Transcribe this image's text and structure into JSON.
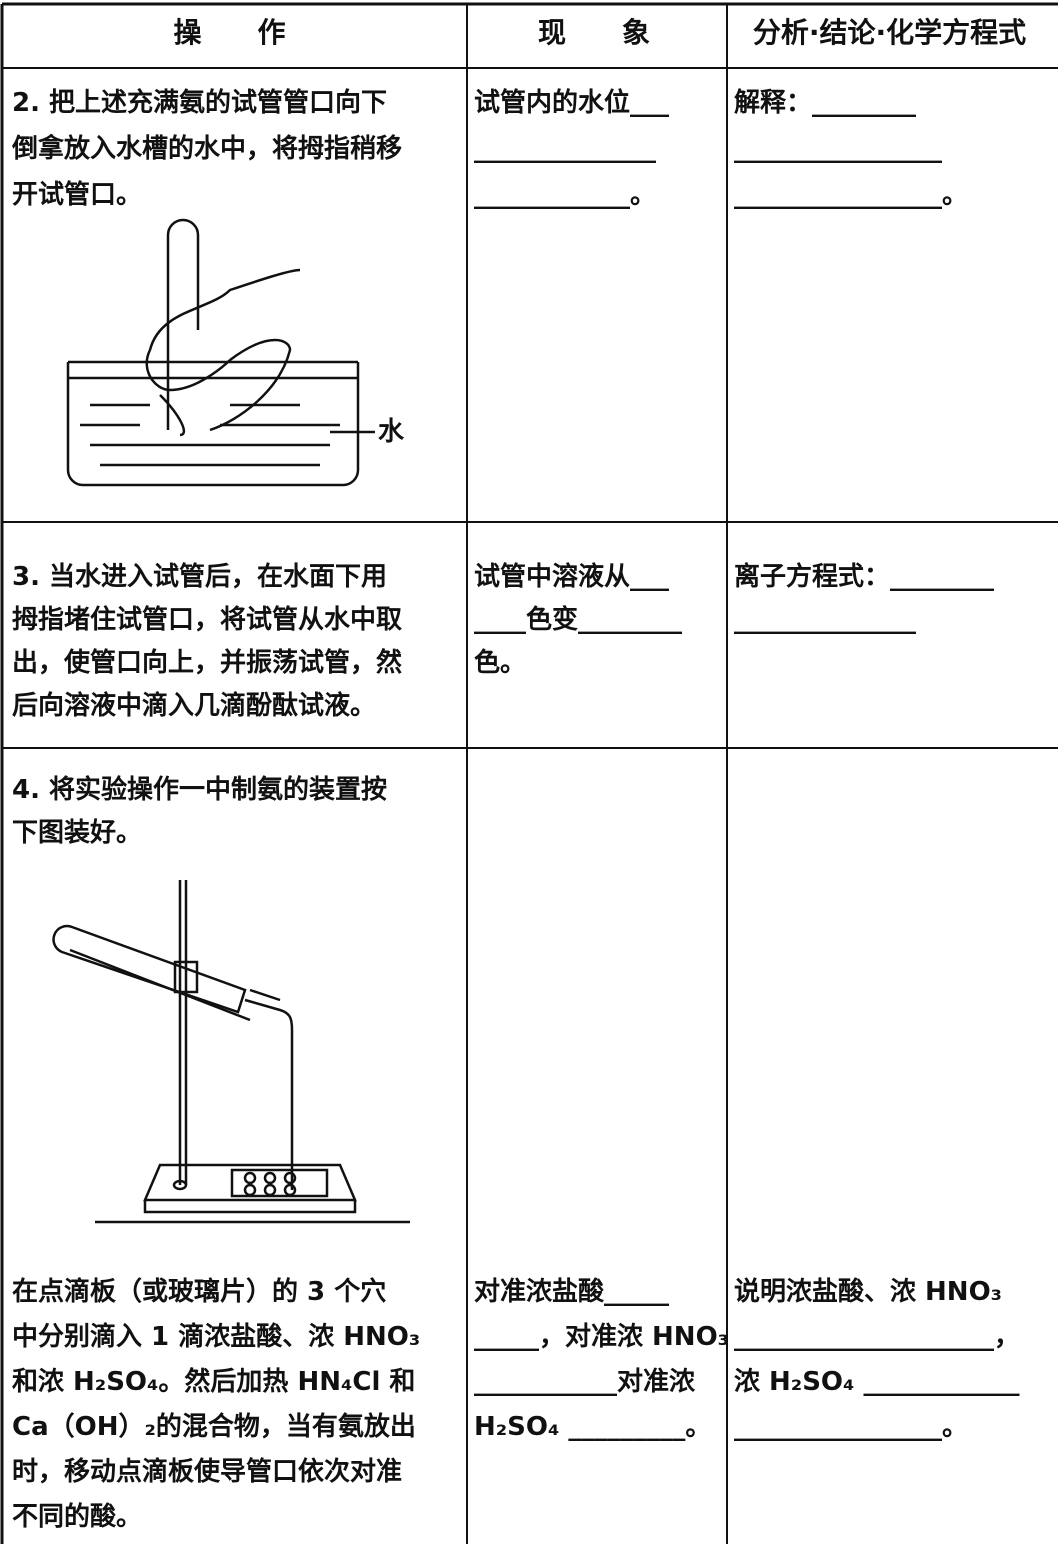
{
  "table": {
    "header": [
      "操　　作",
      "现　　象",
      "分析·结论·化学方程式"
    ],
    "rows": [
      {
        "cells": [
          {
            "lines": [
              "2. 把上述充满氨的试管管口向下",
              "倒拿放入水槽的水中，将拇指稍移",
              "开试管口。"
            ],
            "figure_label": "水"
          },
          {
            "lines": [
              "试管内的水位___",
              "______________",
              "____________。"
            ]
          },
          {
            "lines": [
              "解释：________",
              "________________",
              "________________。"
            ]
          }
        ]
      },
      {
        "cells": [
          {
            "lines": [
              "3. 当水进入试管后，在水面下用",
              "拇指堵住试管口，将试管从水中取",
              "出，使管口向上，并振荡试管，然",
              "后向溶液中滴入几滴酚酞试液。"
            ]
          },
          {
            "lines": [
              "试管中溶液从___",
              "____色变________",
              "色。"
            ]
          },
          {
            "lines": [
              "离子方程式：________",
              "______________"
            ]
          }
        ]
      },
      {
        "cells": [
          {
            "intro": [
              "4. 将实验操作一中制氨的装置按",
              "下图装好。"
            ],
            "lines": [
              "在点滴板（或玻璃片）的 3 个穴",
              "中分别滴入 1 滴浓盐酸、浓 HNO₃",
              "和浓 H₂SO₄。然后加热 HN₄Cl 和",
              "Ca（OH）₂的混合物，当有氨放出",
              "时，移动点滴板使导管口依次对准",
              "不同的酸。"
            ]
          },
          {
            "lines": [
              "对准浓盐酸_____",
              "_____，对准浓 HNO₃",
              "___________对准浓",
              "H₂SO₄ _________。"
            ]
          },
          {
            "lines": [
              "说明浓盐酸、浓 HNO₃",
              "____________________，",
              "浓 H₂SO₄ ____________",
              "________________。"
            ]
          }
        ]
      }
    ]
  }
}
